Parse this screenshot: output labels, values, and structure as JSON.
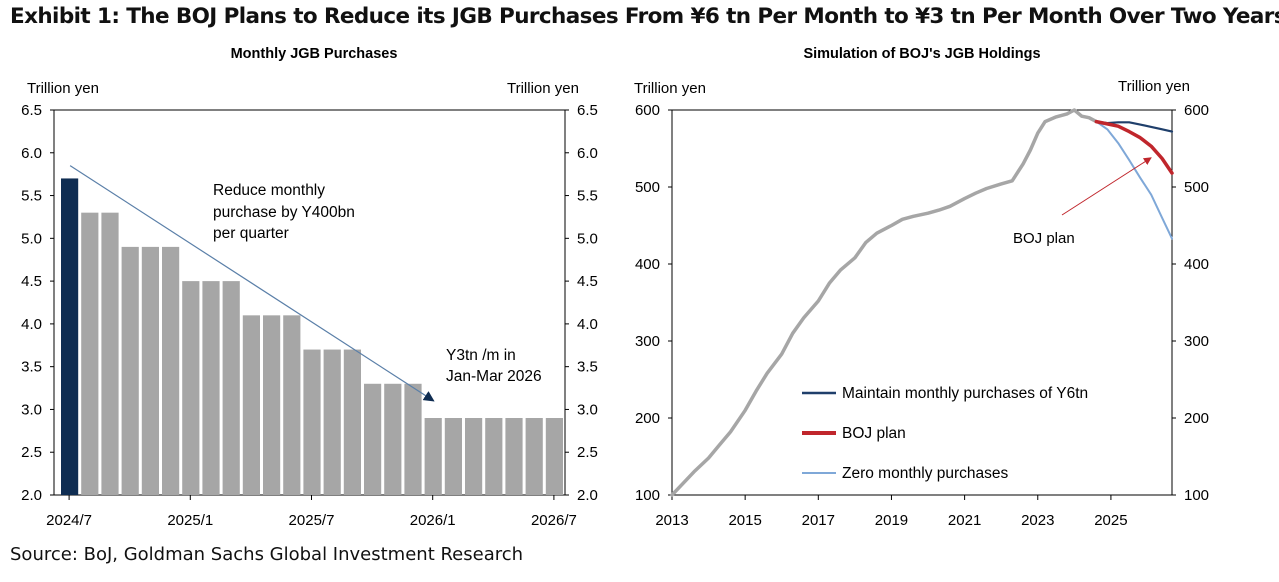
{
  "exhibit_title": "Exhibit 1: The BOJ Plans to Reduce its JGB Purchases From ¥6 tn Per Month to ¥3 tn Per Month Over Two Years",
  "source": "Source: BoJ, Goldman Sachs Global Investment Research",
  "colors": {
    "bar_first": "#0f2d52",
    "bar_rest": "#a6a6a6",
    "trend_line": "#5a7fa8",
    "maintain": "#1f3f6b",
    "boj_plan": "#c0262c",
    "zero": "#7fa8d8",
    "history": "#a6a6a6"
  },
  "chart_data": [
    {
      "type": "bar",
      "title": "Monthly JGB Purchases",
      "ylabel_left": "Trillion  yen",
      "ylabel_right": "Trillion  yen",
      "ylim": [
        2.0,
        6.5
      ],
      "yticks": [
        "2.0",
        "2.5",
        "3.0",
        "3.5",
        "4.0",
        "4.5",
        "5.0",
        "5.5",
        "6.0",
        "6.5"
      ],
      "xtick_labels": [
        "2024/7",
        "2025/1",
        "2025/7",
        "2026/1",
        "2026/7"
      ],
      "categories": [
        "2024/7",
        "2024/8",
        "2024/9",
        "2024/10",
        "2024/11",
        "2024/12",
        "2025/1",
        "2025/2",
        "2025/3",
        "2025/4",
        "2025/5",
        "2025/6",
        "2025/7",
        "2025/8",
        "2025/9",
        "2025/10",
        "2025/11",
        "2025/12",
        "2026/1",
        "2026/2",
        "2026/3",
        "2026/4",
        "2026/5",
        "2026/6",
        "2026/7"
      ],
      "values": [
        5.7,
        5.3,
        5.3,
        4.9,
        4.9,
        4.9,
        4.5,
        4.5,
        4.5,
        4.1,
        4.1,
        4.1,
        3.7,
        3.7,
        3.7,
        3.3,
        3.3,
        3.3,
        2.9,
        2.9,
        2.9,
        2.9,
        2.9,
        2.9,
        2.9
      ],
      "trend_arrow": {
        "from": {
          "x": "2024/7",
          "y": 5.85
        },
        "to": {
          "x": "2026/1",
          "y": 3.1
        }
      },
      "annotations": [
        {
          "lines": [
            "Reduce monthly",
            "purchase  by Y400bn",
            "per quarter"
          ]
        },
        {
          "lines": [
            "Y3tn /m  in",
            "Jan-Mar  2026"
          ]
        }
      ]
    },
    {
      "type": "line",
      "title": "Simulation of BOJ's JGB Holdings",
      "ylabel_left": "Trillion  yen",
      "ylabel_right": "Trillion  yen",
      "ylim": [
        100,
        600
      ],
      "yticks": [
        "100",
        "200",
        "300",
        "400",
        "500",
        "600"
      ],
      "xlim": [
        2013,
        2026.67
      ],
      "xticks": [
        "2013",
        "2015",
        "2017",
        "2019",
        "2021",
        "2023",
        "2025"
      ],
      "series": [
        {
          "name": "History",
          "x": [
            2013.0,
            2013.3,
            2013.6,
            2014.0,
            2014.3,
            2014.6,
            2015.0,
            2015.3,
            2015.6,
            2016.0,
            2016.3,
            2016.6,
            2017.0,
            2017.3,
            2017.6,
            2018.0,
            2018.3,
            2018.6,
            2019.0,
            2019.3,
            2019.6,
            2020.0,
            2020.3,
            2020.6,
            2021.0,
            2021.3,
            2021.6,
            2022.0,
            2022.3,
            2022.6,
            2022.8,
            2023.0,
            2023.2,
            2023.5,
            2023.8,
            2024.0,
            2024.2,
            2024.4,
            2024.6
          ],
          "y": [
            100,
            115,
            130,
            148,
            165,
            182,
            210,
            235,
            258,
            283,
            310,
            330,
            352,
            375,
            392,
            408,
            428,
            440,
            450,
            458,
            462,
            466,
            470,
            475,
            485,
            492,
            498,
            504,
            508,
            530,
            548,
            570,
            585,
            591,
            595,
            600,
            592,
            590,
            585
          ]
        },
        {
          "name": "Maintain monthly purchases of Y6tn",
          "x": [
            2024.6,
            2024.9,
            2025.2,
            2025.5,
            2025.8,
            2026.1,
            2026.4,
            2026.67
          ],
          "y": [
            585,
            583,
            584,
            584,
            581,
            578,
            575,
            572
          ]
        },
        {
          "name": "BOJ plan",
          "x": [
            2024.6,
            2024.9,
            2025.2,
            2025.5,
            2025.8,
            2026.1,
            2026.4,
            2026.67
          ],
          "y": [
            585,
            582,
            579,
            572,
            564,
            553,
            537,
            518
          ]
        },
        {
          "name": "Zero monthly purchases",
          "x": [
            2024.6,
            2024.9,
            2025.2,
            2025.5,
            2025.8,
            2026.1,
            2026.4,
            2026.67
          ],
          "y": [
            585,
            575,
            557,
            535,
            512,
            490,
            460,
            433
          ]
        }
      ],
      "legend": [
        "Maintain monthly purchases of Y6tn",
        "BOJ plan",
        "Zero monthly purchases"
      ],
      "annotation": {
        "text": "BOJ plan",
        "arrow_to": {
          "x": 2026.1,
          "y": 538
        }
      }
    }
  ]
}
